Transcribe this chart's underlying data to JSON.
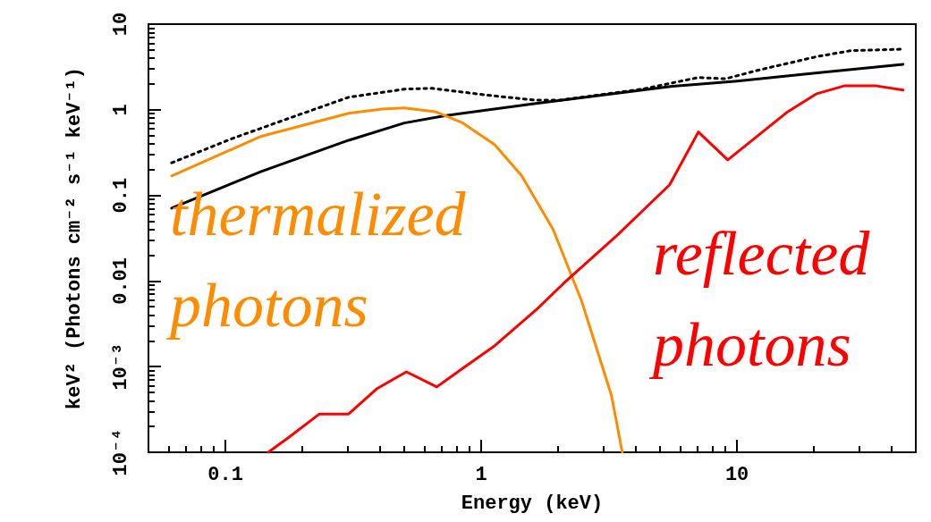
{
  "chart_data": {
    "type": "line",
    "xlabel": "Energy (keV)",
    "ylabel": "keV² (Photons cm⁻² s⁻¹ keV⁻¹)",
    "log": "xy",
    "grid": false,
    "marker": "none",
    "xlim": [
      0.05,
      50
    ],
    "xticks": [
      0.1,
      1,
      10
    ],
    "ylim": [
      0.0001,
      10
    ],
    "yticks": [
      {
        "value": 0.0001,
        "label": "10⁻⁴"
      },
      {
        "value": 0.001,
        "label": "10⁻³"
      },
      0.01,
      0.1,
      1,
      10
    ],
    "series": [
      {
        "color": "#000000",
        "line_style": "solid",
        "x": [
          0.0616,
          0.138,
          0.303,
          0.5,
          0.72,
          1.61,
          5.5,
          10,
          20.2,
          44.6
        ],
        "values": [
          0.071,
          0.19,
          0.44,
          0.7,
          0.85,
          1.18,
          1.87,
          2.16,
          2.68,
          3.4
        ]
      },
      {
        "color": "#000000",
        "line_style": "dotted",
        "x": [
          0.0616,
          0.106,
          0.176,
          0.303,
          0.5,
          0.64,
          1.08,
          1.61,
          2.05,
          4.25,
          7.06,
          9.0,
          12.4,
          20.7,
          27.9,
          44.6
        ],
        "values": [
          0.24,
          0.46,
          0.79,
          1.4,
          1.74,
          1.78,
          1.47,
          1.3,
          1.3,
          1.74,
          2.38,
          2.3,
          2.95,
          4.2,
          4.9,
          5.1
        ]
      },
      {
        "color": "#ff8c00",
        "line_style": "solid",
        "x": [
          0.0616,
          0.138,
          0.303,
          0.41,
          0.5,
          0.66,
          0.84,
          1.13,
          1.44,
          1.91,
          2.47,
          3.23,
          3.56
        ],
        "values": [
          0.169,
          0.49,
          0.91,
          1.02,
          1.05,
          0.95,
          0.71,
          0.39,
          0.169,
          0.04,
          0.0058,
          0.00046,
          0.0001
        ]
      },
      {
        "color": "#ff0000",
        "line_style": "solid",
        "x": [
          0.147,
          0.176,
          0.233,
          0.303,
          0.39,
          0.51,
          0.67,
          0.84,
          1.13,
          1.65,
          2.1,
          3.41,
          5.45,
          7.06,
          9.2,
          15.8,
          20.5,
          26.4,
          34.7,
          44.6
        ],
        "values": [
          0.0001,
          0.000148,
          0.00028,
          0.00028,
          0.00055,
          0.00087,
          0.00058,
          0.00094,
          0.00176,
          0.0047,
          0.0094,
          0.0345,
          0.133,
          0.55,
          0.26,
          0.95,
          1.54,
          1.91,
          1.91,
          1.7
        ]
      }
    ],
    "annotations": [
      "thermalized photons",
      "reflected photons"
    ]
  }
}
